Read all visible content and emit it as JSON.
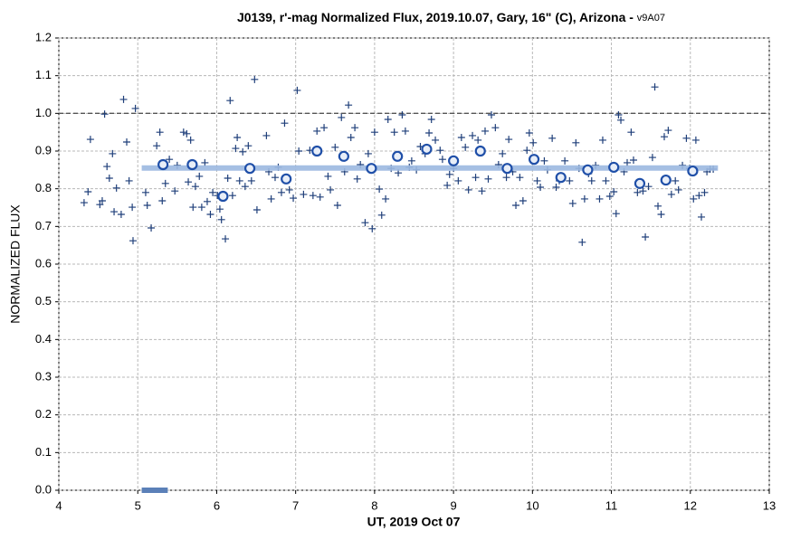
{
  "chart_data": {
    "type": "scatter",
    "title": "J0139, r'-mag Normalized Flux, 2019.10.07, Gary, 16\" (C), Arizona - ",
    "subtitle": "v9A07",
    "xlabel": "UT, 2019 Oct 07",
    "ylabel": "NORMALIZED FLUX",
    "xlim": [
      4,
      13
    ],
    "ylim": [
      0,
      1.2
    ],
    "xticks": [
      4,
      5,
      6,
      7,
      8,
      9,
      10,
      11,
      12,
      13
    ],
    "yticks": [
      {
        "value": 0,
        "label": "0.0"
      },
      0.1,
      0.2,
      0.3,
      0.4,
      0.5,
      0.6,
      0.7,
      0.8,
      0.9,
      {
        "value": 1,
        "label": "1.0"
      },
      1.1,
      1.2
    ],
    "grid": true,
    "reference_y": 1.0,
    "reference_color": "#555555",
    "bar_x": [
      5.05,
      5.38
    ],
    "bar_color": "#5b80b8",
    "series": [
      {
        "marker": "plus",
        "color": "#1f3f7a",
        "x": [
          4.32,
          4.37,
          4.4,
          4.52,
          4.55,
          4.58,
          4.61,
          4.64,
          4.68,
          4.7,
          4.73,
          4.79,
          4.82,
          4.86,
          4.89,
          4.93,
          4.94,
          4.97,
          5.1,
          5.12,
          5.17,
          5.24,
          5.28,
          5.31,
          5.35,
          5.4,
          5.47,
          5.5,
          5.58,
          5.62,
          5.64,
          5.67,
          5.7,
          5.73,
          5.78,
          5.81,
          5.85,
          5.88,
          5.92,
          5.95,
          6.01,
          6.04,
          6.06,
          6.11,
          6.14,
          6.17,
          6.2,
          6.24,
          6.26,
          6.29,
          6.33,
          6.36,
          6.4,
          6.44,
          6.48,
          6.51,
          6.63,
          6.66,
          6.69,
          6.74,
          6.78,
          6.82,
          6.86,
          6.92,
          6.97,
          7.02,
          7.04,
          7.1,
          7.18,
          7.22,
          7.27,
          7.31,
          7.36,
          7.41,
          7.44,
          7.5,
          7.53,
          7.58,
          7.62,
          7.67,
          7.7,
          7.75,
          7.78,
          7.82,
          7.88,
          7.92,
          7.97,
          8.0,
          8.06,
          8.09,
          8.14,
          8.17,
          8.21,
          8.25,
          8.3,
          8.35,
          8.39,
          8.44,
          8.47,
          8.53,
          8.58,
          8.64,
          8.69,
          8.72,
          8.77,
          8.83,
          8.86,
          8.92,
          8.95,
          9.0,
          9.06,
          9.1,
          9.15,
          9.19,
          9.24,
          9.28,
          9.31,
          9.36,
          9.4,
          9.44,
          9.48,
          9.53,
          9.57,
          9.62,
          9.67,
          9.7,
          9.75,
          9.79,
          9.84,
          9.88,
          9.93,
          9.96,
          10.01,
          10.06,
          10.1,
          10.15,
          10.19,
          10.25,
          10.3,
          10.34,
          10.41,
          10.47,
          10.51,
          10.55,
          10.59,
          10.63,
          10.66,
          10.71,
          10.75,
          10.8,
          10.85,
          10.89,
          10.93,
          10.98,
          11.03,
          11.06,
          11.09,
          11.12,
          11.16,
          11.2,
          11.25,
          11.28,
          11.33,
          11.4,
          11.43,
          11.47,
          11.52,
          11.55,
          11.59,
          11.63,
          11.67,
          11.72,
          11.76,
          11.81,
          11.85,
          11.9,
          11.95,
          11.99,
          12.04,
          12.07,
          12.11,
          12.14,
          12.18,
          12.21,
          12.25,
          12.29
        ],
        "values": [
          0.763,
          0.792,
          0.931,
          0.758,
          0.768,
          0.998,
          0.859,
          0.828,
          0.893,
          0.739,
          0.802,
          0.732,
          1.037,
          0.924,
          0.821,
          0.751,
          0.662,
          1.013,
          0.79,
          0.756,
          0.696,
          0.914,
          0.95,
          0.768,
          0.814,
          0.878,
          0.794,
          0.862,
          0.95,
          0.946,
          0.818,
          0.929,
          0.751,
          0.806,
          0.833,
          0.751,
          0.869,
          0.766,
          0.732,
          0.79,
          0.782,
          0.746,
          0.718,
          0.667,
          0.828,
          1.034,
          0.782,
          0.907,
          0.936,
          0.821,
          0.898,
          0.806,
          0.914,
          0.821,
          1.09,
          0.744,
          0.941,
          0.845,
          0.773,
          0.83,
          0.857,
          0.79,
          0.974,
          0.797,
          0.775,
          1.061,
          0.9,
          0.785,
          0.902,
          0.782,
          0.953,
          0.778,
          0.962,
          0.833,
          0.797,
          0.91,
          0.756,
          0.989,
          0.845,
          1.022,
          0.936,
          0.962,
          0.826,
          0.864,
          0.71,
          0.893,
          0.694,
          0.95,
          0.799,
          0.73,
          0.773,
          0.984,
          0.854,
          0.95,
          0.842,
          0.996,
          0.953,
          0.857,
          0.874,
          0.85,
          0.912,
          0.893,
          0.948,
          0.984,
          0.929,
          0.902,
          0.878,
          0.809,
          0.838,
          0.854,
          0.821,
          0.936,
          0.91,
          0.797,
          0.941,
          0.83,
          0.929,
          0.794,
          0.953,
          0.826,
          0.996,
          0.962,
          0.864,
          0.893,
          0.83,
          0.931,
          0.845,
          0.756,
          0.83,
          0.768,
          0.902,
          0.948,
          0.922,
          0.821,
          0.804,
          0.874,
          0.85,
          0.934,
          0.804,
          0.821,
          0.874,
          0.821,
          0.761,
          0.922,
          0.854,
          0.658,
          0.773,
          0.84,
          0.821,
          0.862,
          0.773,
          0.929,
          0.821,
          0.78,
          0.792,
          0.734,
          0.996,
          0.982,
          0.845,
          0.869,
          0.95,
          0.876,
          0.79,
          0.794,
          0.672,
          0.806,
          0.883,
          1.07,
          0.754,
          0.732,
          0.938,
          0.955,
          0.785,
          0.821,
          0.797,
          0.862,
          0.934,
          0.854,
          0.773,
          0.929,
          0.782,
          0.725,
          0.79,
          0.845,
          0.852,
          0.852
        ]
      },
      {
        "marker": "line",
        "color": "#9bb8e0",
        "x": [
          5.05,
          12.35
        ],
        "values": [
          0.855,
          0.855
        ]
      },
      {
        "marker": "circle",
        "color": "#1f4fa8",
        "x": [
          5.32,
          5.69,
          6.08,
          6.42,
          6.88,
          7.27,
          7.61,
          7.96,
          8.29,
          8.66,
          9.0,
          9.34,
          9.68,
          10.02,
          10.36,
          10.7,
          11.03,
          11.36,
          11.69,
          12.03
        ],
        "values": [
          0.864,
          0.864,
          0.78,
          0.854,
          0.826,
          0.9,
          0.886,
          0.854,
          0.886,
          0.905,
          0.874,
          0.9,
          0.854,
          0.878,
          0.83,
          0.85,
          0.857,
          0.814,
          0.823,
          0.847
        ]
      }
    ]
  }
}
